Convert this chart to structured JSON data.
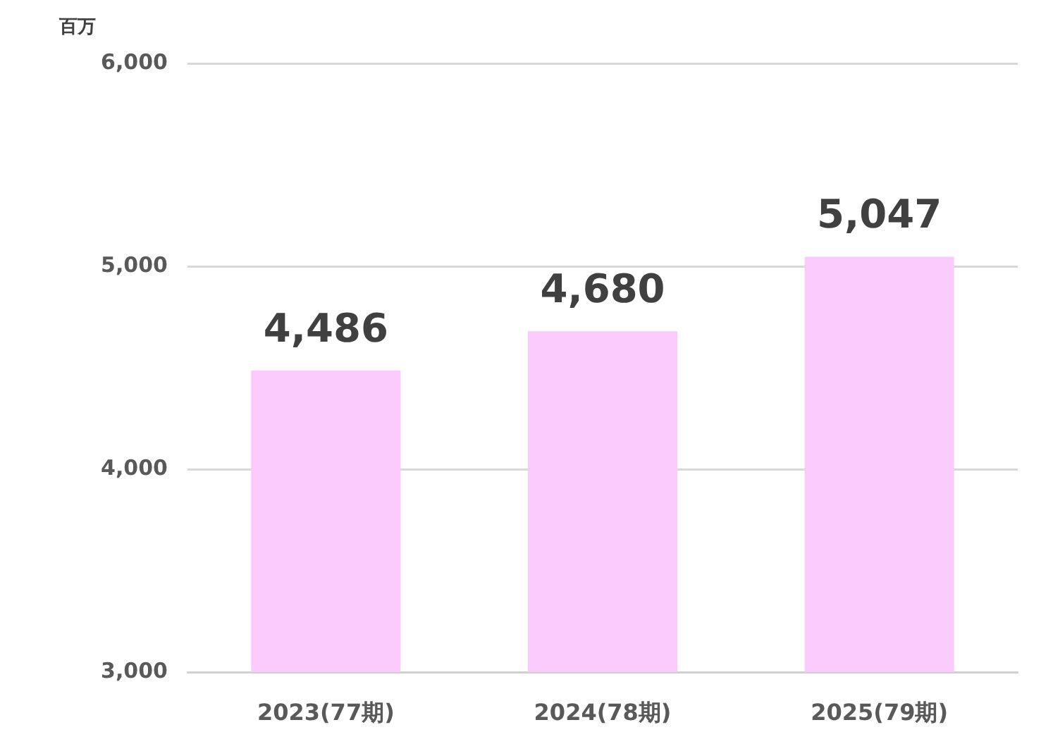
{
  "chart_data": {
    "type": "bar",
    "ylabel": "百万",
    "categories": [
      "2023(77期)",
      "2024(78期)",
      "2025(79期)"
    ],
    "values": [
      4486,
      4680,
      5047
    ],
    "color": "#fbcafd",
    "ylim": [
      3000,
      6000
    ],
    "yticks": [
      {
        "value": 3000,
        "label": "3,000"
      },
      {
        "value": 4000,
        "label": "4,000"
      },
      {
        "value": 5000,
        "label": "5,000"
      },
      {
        "value": 6000,
        "label": "6,000"
      }
    ],
    "grid": "y",
    "legend": false,
    "value_labels": [
      "4,486",
      "4,680",
      "5,047"
    ]
  }
}
